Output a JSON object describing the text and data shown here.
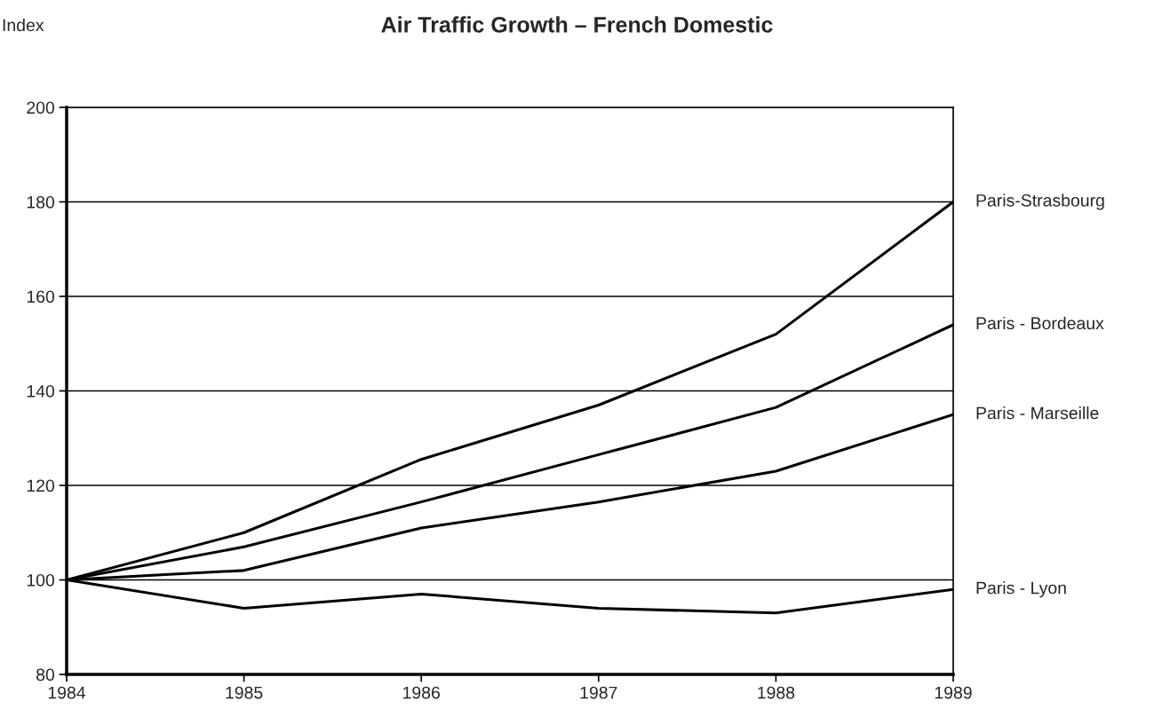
{
  "chart_data": {
    "type": "line",
    "title": "Air Traffic Growth – French Domestic",
    "ylabel": "Index",
    "x": [
      1984,
      1985,
      1986,
      1987,
      1988,
      1989
    ],
    "series": [
      {
        "name": "Paris-Strasbourg",
        "color": "#000000",
        "values": [
          100,
          110,
          125.5,
          137,
          152,
          180
        ]
      },
      {
        "name": "Paris - Bordeaux",
        "color": "#000000",
        "values": [
          100,
          107,
          116.5,
          126.5,
          136.5,
          154
        ]
      },
      {
        "name": "Paris - Marseille",
        "color": "#000000",
        "values": [
          100,
          102,
          111,
          116.5,
          123,
          135
        ]
      },
      {
        "name": "Paris - Lyon",
        "color": "#000000",
        "values": [
          100,
          94,
          97,
          94,
          93,
          98
        ]
      }
    ],
    "xlim": [
      1984,
      1989
    ],
    "xticks": [
      1984,
      1985,
      1986,
      1987,
      1988,
      1989
    ],
    "ylim": [
      80,
      200
    ],
    "yticks": [
      80,
      100,
      120,
      140,
      160,
      180,
      200
    ],
    "grid": "y",
    "marker": "none",
    "line_style": "solid",
    "legend": false
  }
}
